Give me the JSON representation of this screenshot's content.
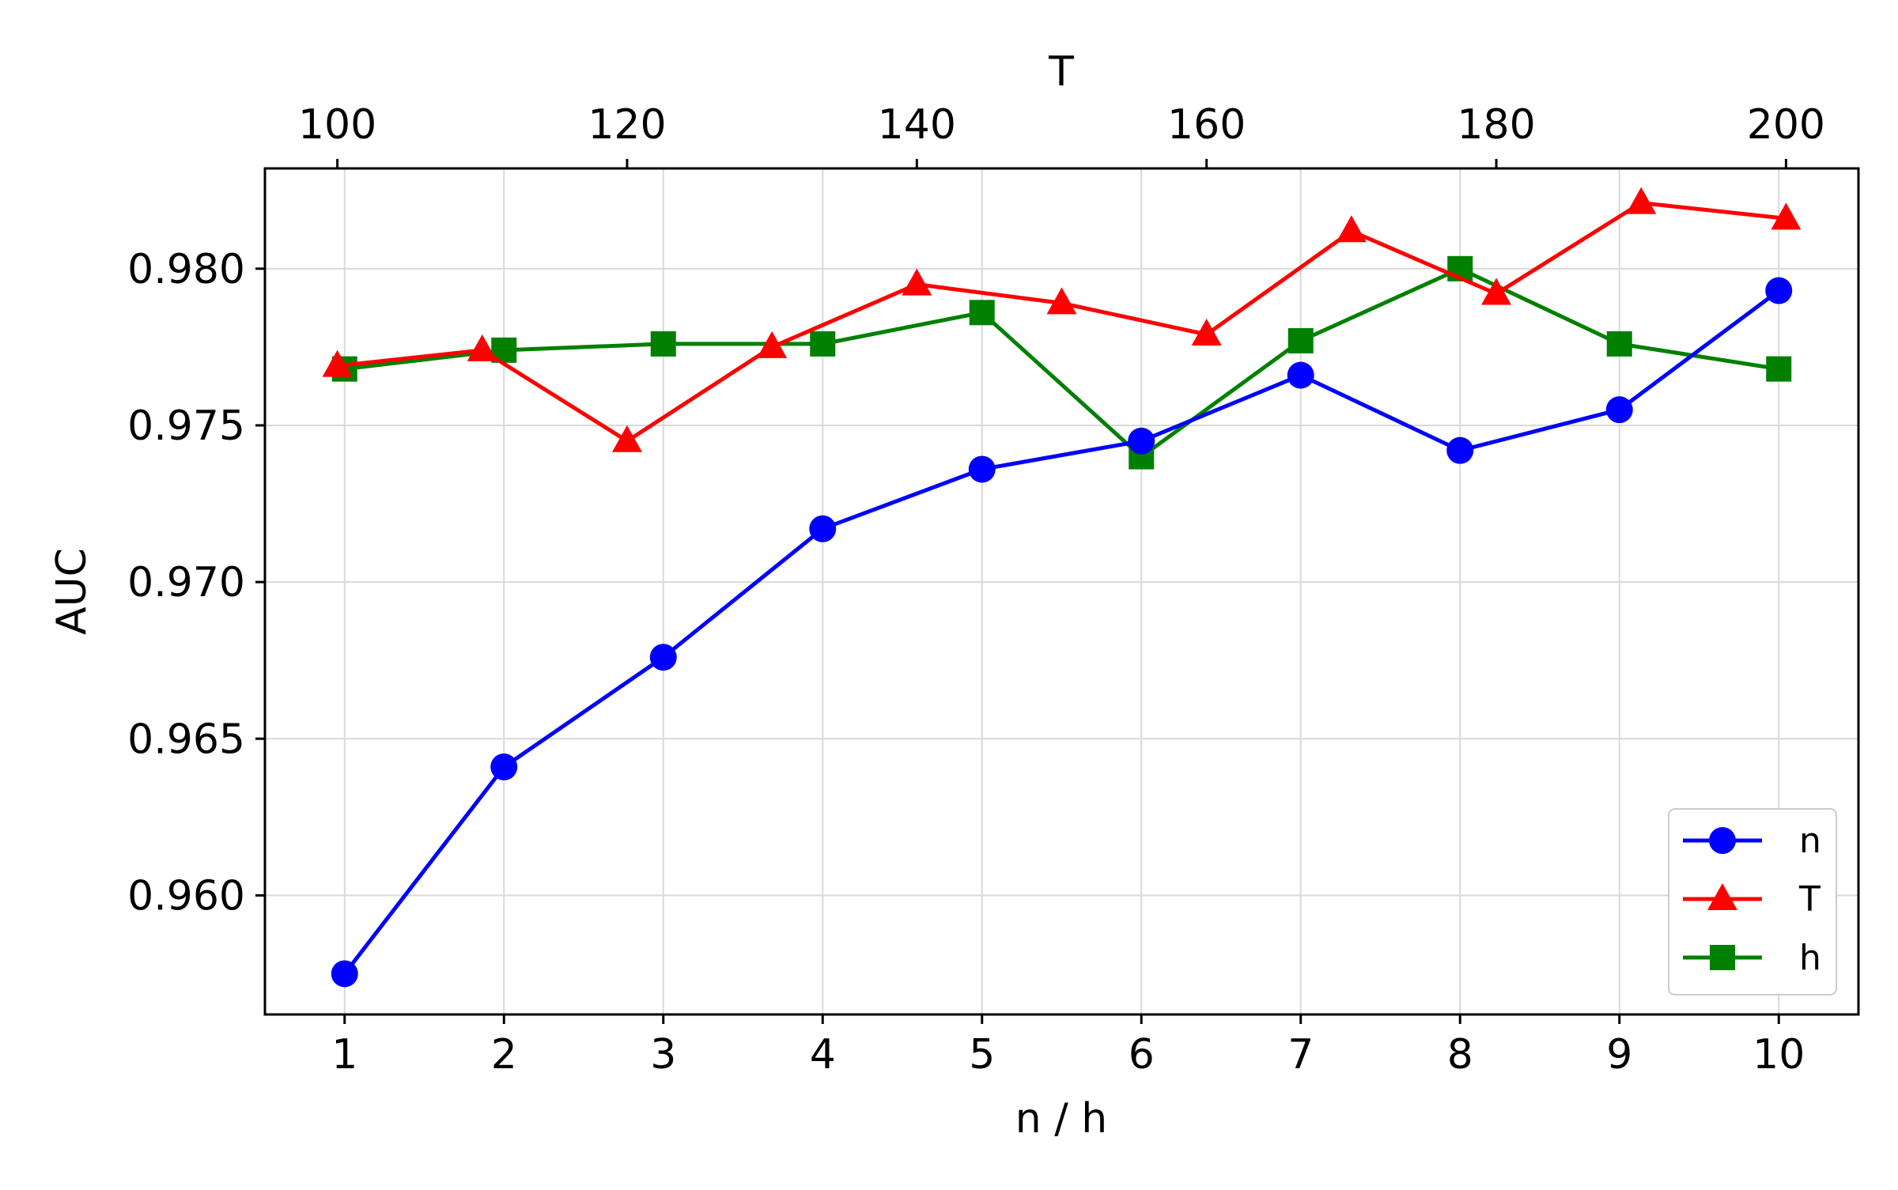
{
  "chart_data": {
    "type": "line",
    "xlabel": "n / h",
    "ylabel": "AUC",
    "top_xlabel": "T",
    "x_ticks": [
      "1",
      "2",
      "3",
      "4",
      "5",
      "6",
      "7",
      "8",
      "9",
      "10"
    ],
    "top_x_ticks": [
      "100",
      "120",
      "140",
      "160",
      "180",
      "200"
    ],
    "y_ticks": [
      "0.960",
      "0.965",
      "0.970",
      "0.975",
      "0.980"
    ],
    "xlim": [
      0.5,
      10.5
    ],
    "top_xlim": [
      95,
      205
    ],
    "ylim": [
      0.9562,
      0.9832
    ],
    "grid": true,
    "legend_position": "lower right",
    "series": [
      {
        "name": "n",
        "axis": "bottom",
        "color": "#0000ff",
        "marker": "circle",
        "x": [
          1,
          2,
          3,
          4,
          5,
          6,
          7,
          8,
          9,
          10
        ],
        "values": [
          0.9575,
          0.9641,
          0.9676,
          0.9717,
          0.9736,
          0.9745,
          0.9766,
          0.9742,
          0.9755,
          0.9793
        ]
      },
      {
        "name": "T",
        "axis": "top",
        "color": "#ff0000",
        "marker": "triangle",
        "x": [
          100,
          110,
          120,
          130,
          140,
          150,
          160,
          170,
          180,
          190,
          200
        ],
        "values": [
          0.9769,
          0.9774,
          0.9745,
          0.9775,
          0.9795,
          0.9789,
          0.9779,
          0.9812,
          0.9792,
          0.9821,
          0.9816
        ]
      },
      {
        "name": "h",
        "axis": "bottom",
        "color": "#008000",
        "marker": "square",
        "x": [
          1,
          2,
          3,
          4,
          5,
          6,
          7,
          8,
          9,
          10
        ],
        "values": [
          0.9768,
          0.9774,
          0.9776,
          0.9776,
          0.9786,
          0.974,
          0.9777,
          0.98,
          0.9776,
          0.9768
        ]
      }
    ]
  }
}
